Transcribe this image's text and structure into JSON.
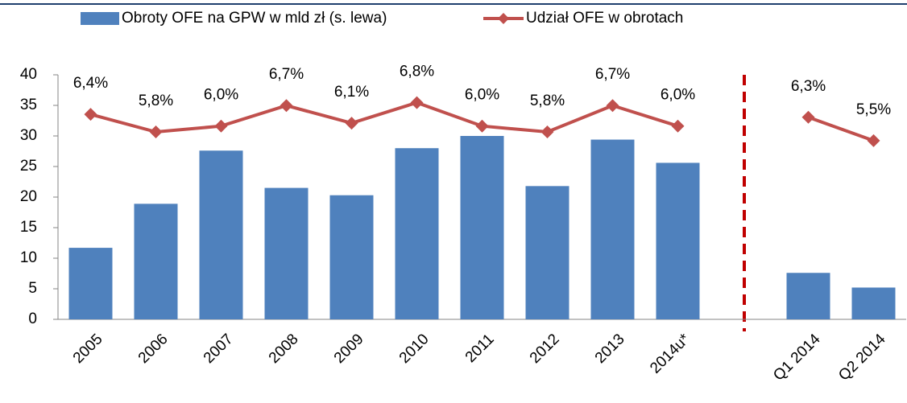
{
  "chart_data": {
    "type": "combo",
    "categories": [
      "2005",
      "2006",
      "2007",
      "2008",
      "2009",
      "2010",
      "2011",
      "2012",
      "2013",
      "2014u*",
      null,
      "Q1 2014",
      "Q2 2014"
    ],
    "series": [
      {
        "name": "Obroty OFE na GPW w mld zł (s. lewa)",
        "type": "bar",
        "color": "#4f81bd",
        "axis": "y",
        "values": [
          11.7,
          18.9,
          27.6,
          21.5,
          20.3,
          28.0,
          30.0,
          21.8,
          29.4,
          25.6,
          null,
          7.6,
          5.2
        ]
      },
      {
        "name": "Udział OFE w obrotach",
        "type": "line",
        "color": "#c0504d",
        "axis": "y2",
        "values": [
          6.4,
          5.8,
          6.0,
          6.7,
          6.1,
          6.8,
          6.0,
          5.8,
          6.7,
          6.0,
          null,
          6.3,
          5.5
        ],
        "value_labels": [
          "6,4%",
          "5,8%",
          "6,0%",
          "6,7%",
          "6,1%",
          "6,8%",
          "6,0%",
          "5,8%",
          "6,7%",
          "6,0%",
          null,
          "6,3%",
          "5,5%"
        ]
      }
    ],
    "ylim": [
      0,
      40
    ],
    "yticks": [
      0,
      5,
      10,
      15,
      20,
      25,
      30,
      35,
      40
    ],
    "y2lim": [
      -0.6,
      7.75
    ],
    "legend": "top"
  }
}
